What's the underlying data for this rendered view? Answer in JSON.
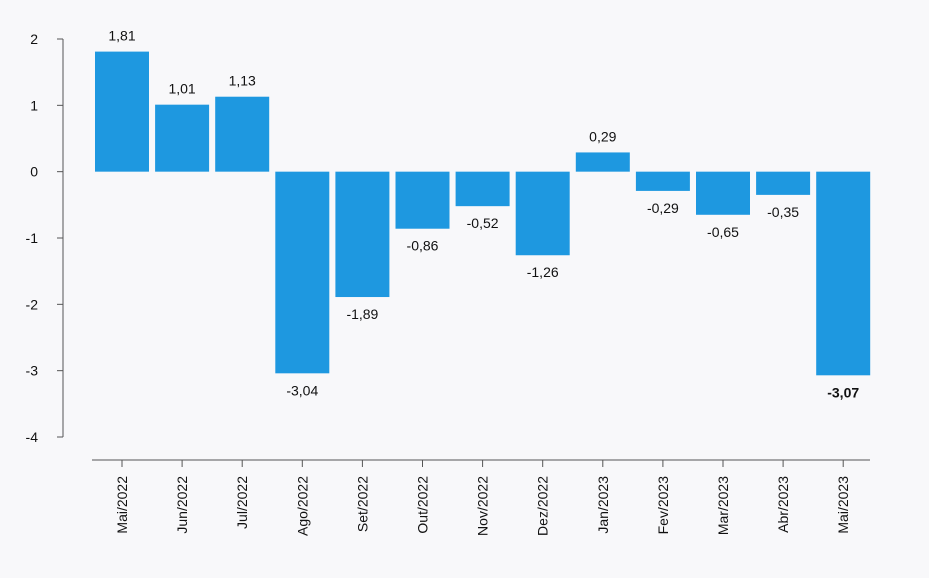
{
  "chart_data": {
    "type": "bar",
    "title": "",
    "xlabel": "",
    "ylabel": "",
    "ylim": [
      -4,
      2
    ],
    "yticks": [
      2,
      1,
      0,
      -1,
      -2,
      -3,
      -4
    ],
    "ytick_labels": [
      "2",
      "1",
      "0",
      "-1",
      "-2",
      "-3",
      "-4"
    ],
    "categories": [
      "Mai/2022",
      "Jun/2022",
      "Jul/2022",
      "Ago/2022",
      "Set/2022",
      "Out/2022",
      "Nov/2022",
      "Dez/2022",
      "Jan/2023",
      "Fev/2023",
      "Mar/2023",
      "Abr/2023",
      "Mai/2023"
    ],
    "values": [
      1.81,
      1.01,
      1.13,
      -3.04,
      -1.89,
      -0.86,
      -0.52,
      -1.26,
      0.29,
      -0.29,
      -0.65,
      -0.35,
      -3.07
    ],
    "value_labels": [
      "1,81",
      "1,01",
      "1,13",
      "-3,04",
      "-1,89",
      "-0,86",
      "-0,52",
      "-1,26",
      "0,29",
      "-0,29",
      "-0,65",
      "-0,35",
      "-3,07"
    ],
    "bold_label_index": 12,
    "bar_color": "#1e98e0",
    "grid": false,
    "legend": "none"
  }
}
